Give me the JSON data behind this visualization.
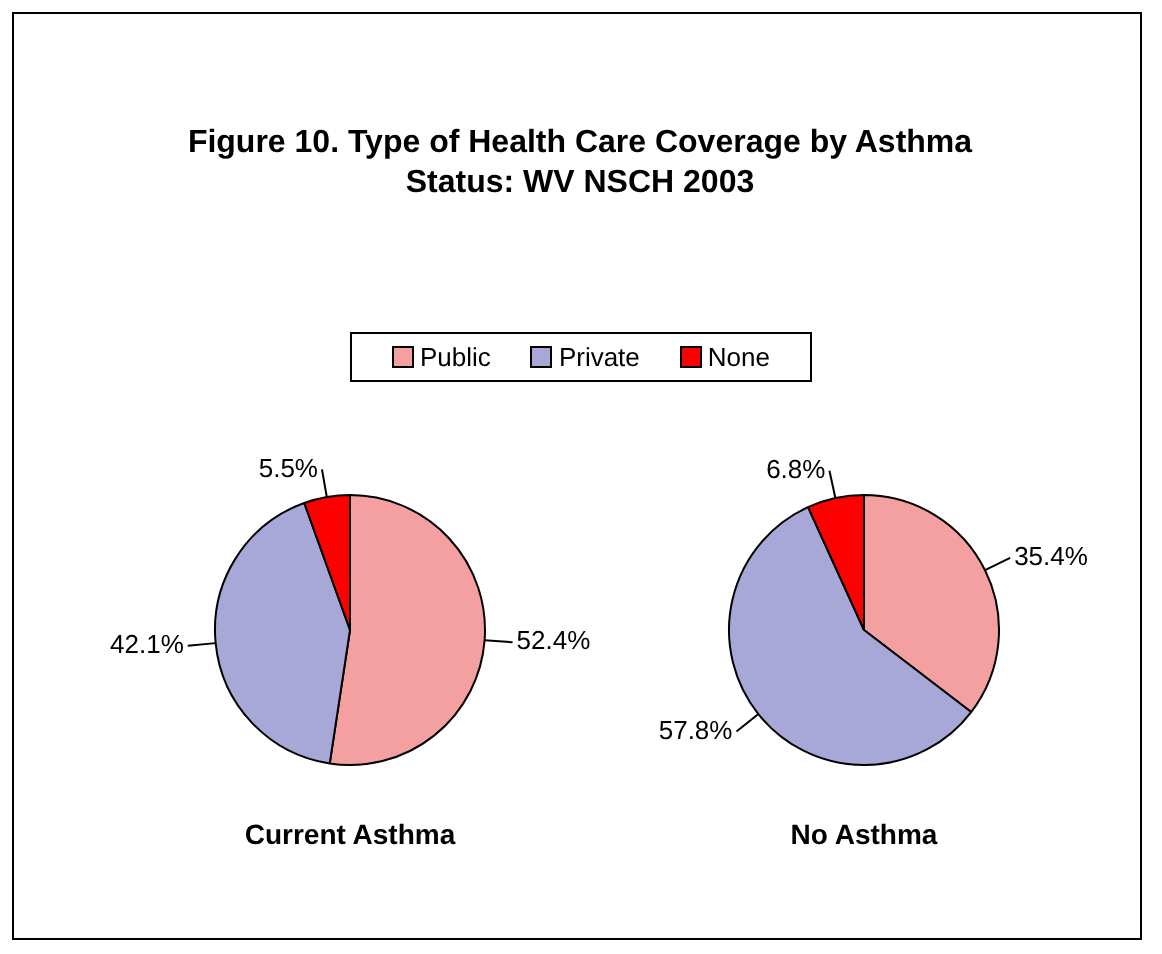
{
  "chart_data": {
    "type": "pie",
    "title": "Figure 10.  Type of Health Care Coverage by Asthma Status: WV NSCH 2003",
    "categories": [
      "Public",
      "Private",
      "None"
    ],
    "colors": [
      "#f4a0a0",
      "#a8a8d8",
      "#ff0000"
    ],
    "legend": "top",
    "series": [
      {
        "name": "Current Asthma",
        "values": [
          52.4,
          42.1,
          5.5
        ],
        "value_labels": [
          "52.4%",
          "42.1%",
          "5.5%"
        ]
      },
      {
        "name": "No Asthma",
        "values": [
          35.4,
          57.8,
          6.8
        ],
        "value_labels": [
          "35.4%",
          "57.8%",
          "6.8%"
        ]
      }
    ]
  }
}
